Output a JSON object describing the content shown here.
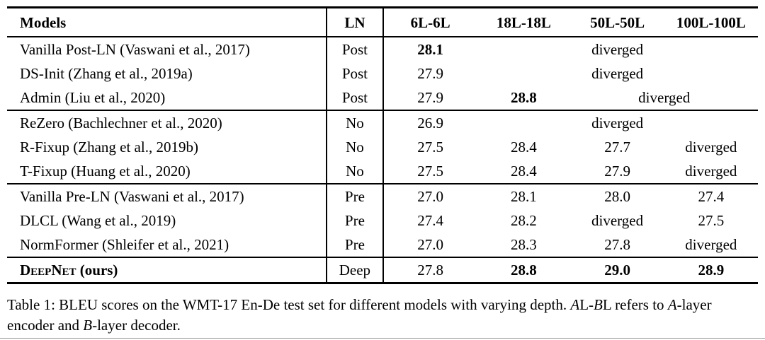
{
  "table": {
    "header": {
      "models": "Models",
      "ln": "LN",
      "cols": [
        "6L-6L",
        "18L-18L",
        "50L-50L",
        "100L-100L"
      ]
    },
    "rows": [
      {
        "model": "Vanilla Post-LN (Vaswani et al., 2017)",
        "ln": "Post",
        "c1": "28.1",
        "span": "diverged"
      },
      {
        "model": "DS-Init (Zhang et al., 2019a)",
        "ln": "Post",
        "c1": "27.9",
        "span": "diverged"
      },
      {
        "model": "Admin (Liu et al., 2020)",
        "ln": "Post",
        "c1": "27.9",
        "c2": "28.8",
        "span": "diverged"
      },
      {
        "model": "ReZero (Bachlechner et al., 2020)",
        "ln": "No",
        "c1": "26.9",
        "span": "diverged"
      },
      {
        "model": "R-Fixup (Zhang et al., 2019b)",
        "ln": "No",
        "c1": "27.5",
        "c2": "28.4",
        "c3": "27.7",
        "c4": "diverged"
      },
      {
        "model": "T-Fixup (Huang et al., 2020)",
        "ln": "No",
        "c1": "27.5",
        "c2": "28.4",
        "c3": "27.9",
        "c4": "diverged"
      },
      {
        "model": "Vanilla Pre-LN (Vaswani et al., 2017)",
        "ln": "Pre",
        "c1": "27.0",
        "c2": "28.1",
        "c3": "28.0",
        "c4": "27.4"
      },
      {
        "model": "DLCL (Wang et al., 2019)",
        "ln": "Pre",
        "c1": "27.4",
        "c2": "28.2",
        "c3": "diverged",
        "c4": "27.5"
      },
      {
        "model": "NormFormer (Shleifer et al., 2021)",
        "ln": "Pre",
        "c1": "27.0",
        "c2": "28.3",
        "c3": "27.8",
        "c4": "diverged"
      },
      {
        "model_name": "DeepNet",
        "model_suffix": " (ours)",
        "ln": "Deep",
        "c1": "27.8",
        "c2": "28.8",
        "c3": "29.0",
        "c4": "28.9"
      }
    ]
  },
  "caption": {
    "segments": [
      {
        "text": "Table 1: BLEU scores on the WMT-17 En-De test set for different models with varying depth. "
      },
      {
        "text": "A"
      },
      {
        "text": "L-"
      },
      {
        "text": "B"
      },
      {
        "text": "L refers to "
      },
      {
        "text": "A"
      },
      {
        "text": "-layer encoder and "
      },
      {
        "text": "B"
      },
      {
        "text": "-layer decoder."
      }
    ]
  }
}
